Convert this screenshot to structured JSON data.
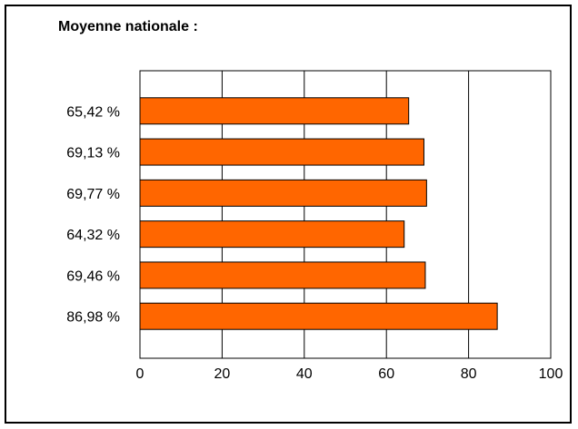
{
  "chart_data": {
    "type": "bar",
    "orientation": "horizontal",
    "title": "Moyenne nationale :",
    "categories": [
      "65,42 %",
      "69,13 %",
      "69,77 %",
      "64,32 %",
      "69,46 %",
      "86,98 %"
    ],
    "values": [
      65.42,
      69.13,
      69.77,
      64.32,
      69.46,
      86.98
    ],
    "xlim": [
      0,
      100
    ],
    "xticks": [
      "0",
      "20",
      "40",
      "60",
      "80",
      "100"
    ],
    "xlabel": "",
    "ylabel": "",
    "grid": "vertical",
    "legend": "none",
    "colors": {
      "bar_fill": "#FF6600",
      "bar_stroke": "#000000",
      "axis": "#000000",
      "background": "#FFFFFF"
    }
  }
}
